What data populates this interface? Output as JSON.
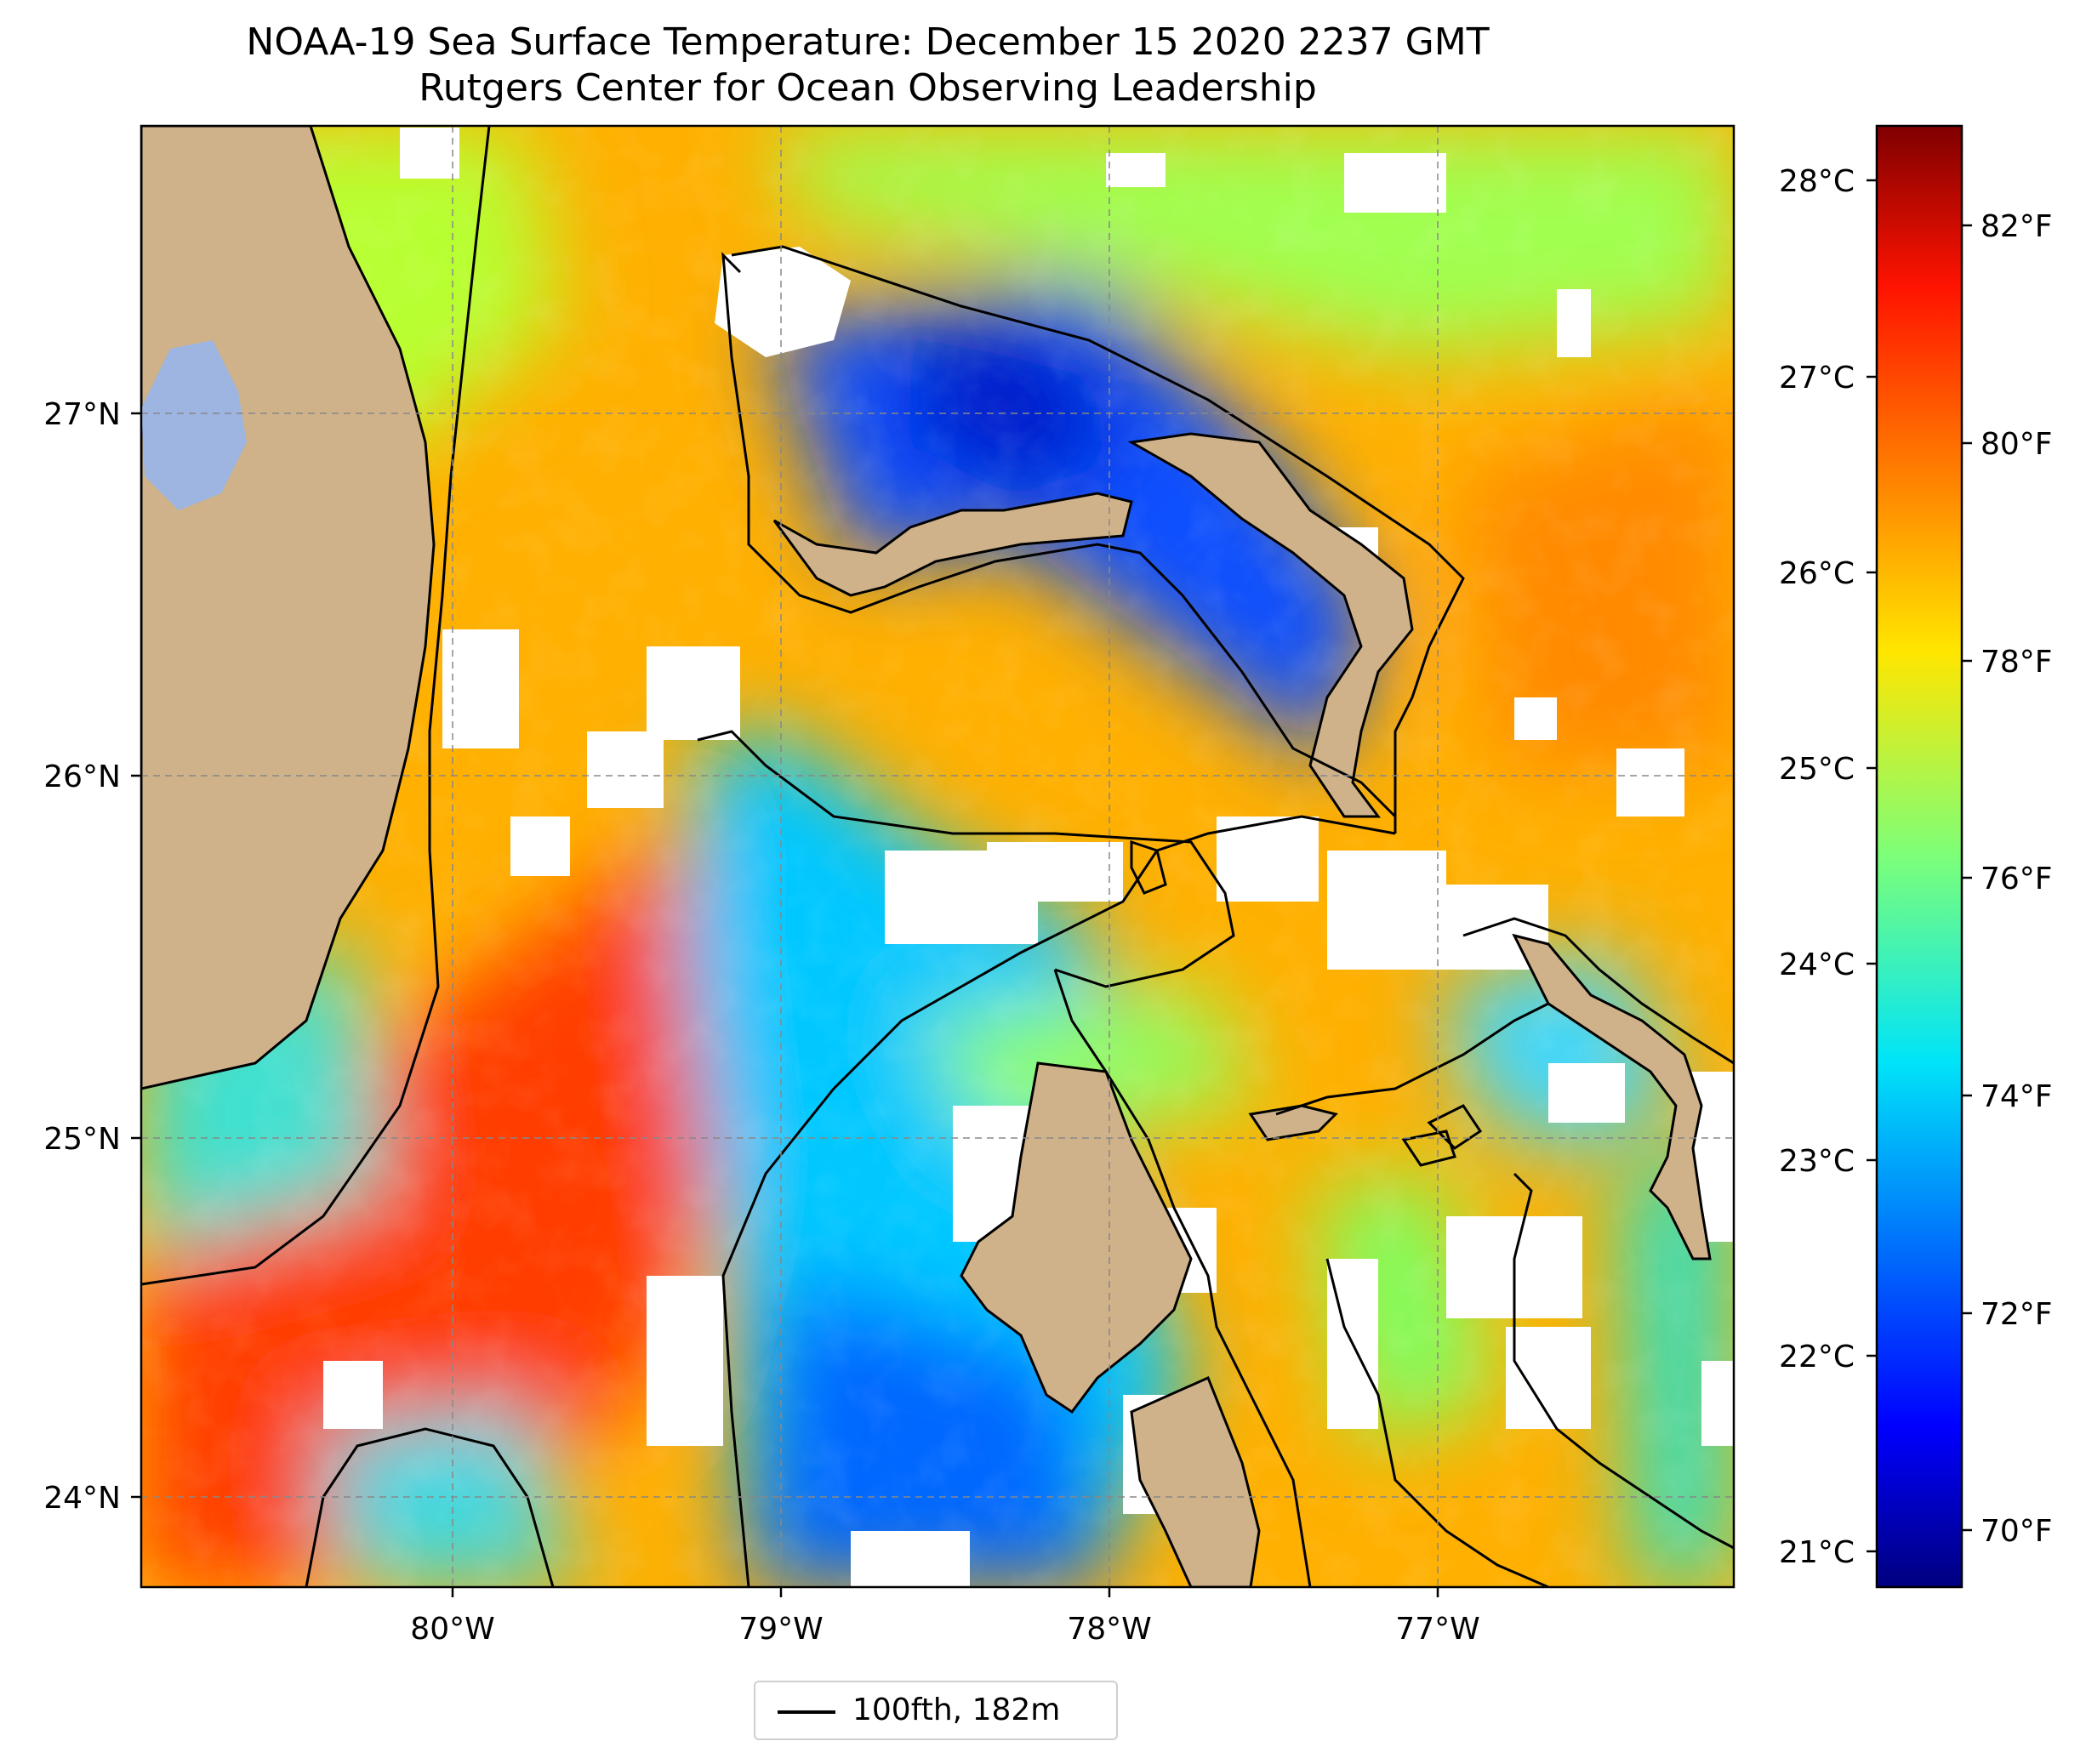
{
  "header": {
    "title": "NOAA-19 Sea Surface Temperature: December 15 2020 2237 GMT",
    "subtitle": "Rutgers Center for Ocean Observing Leadership"
  },
  "map": {
    "lon_range": [
      -80.95,
      -76.1
    ],
    "lat_range": [
      23.75,
      27.78
    ],
    "lon_ticks": [
      "80°W",
      "79°W",
      "78°W",
      "77°W"
    ],
    "lat_ticks": [
      "27°N",
      "26°N",
      "25°N",
      "24°N"
    ],
    "grid": "dashed",
    "land_color": "#cfb28a",
    "lake_color": "#9db5e0",
    "coastline_color": "#000000"
  },
  "colorbar": {
    "colormap": "jet",
    "celsius_ticks": [
      "28°C",
      "27°C",
      "26°C",
      "25°C",
      "24°C",
      "23°C",
      "22°C",
      "21°C"
    ],
    "fahrenheit_ticks": [
      "82°F",
      "80°F",
      "78°F",
      "76°F",
      "74°F",
      "72°F",
      "70°F"
    ]
  },
  "legend": {
    "label": "100fth, 182m",
    "placement": "bottom-center"
  }
}
